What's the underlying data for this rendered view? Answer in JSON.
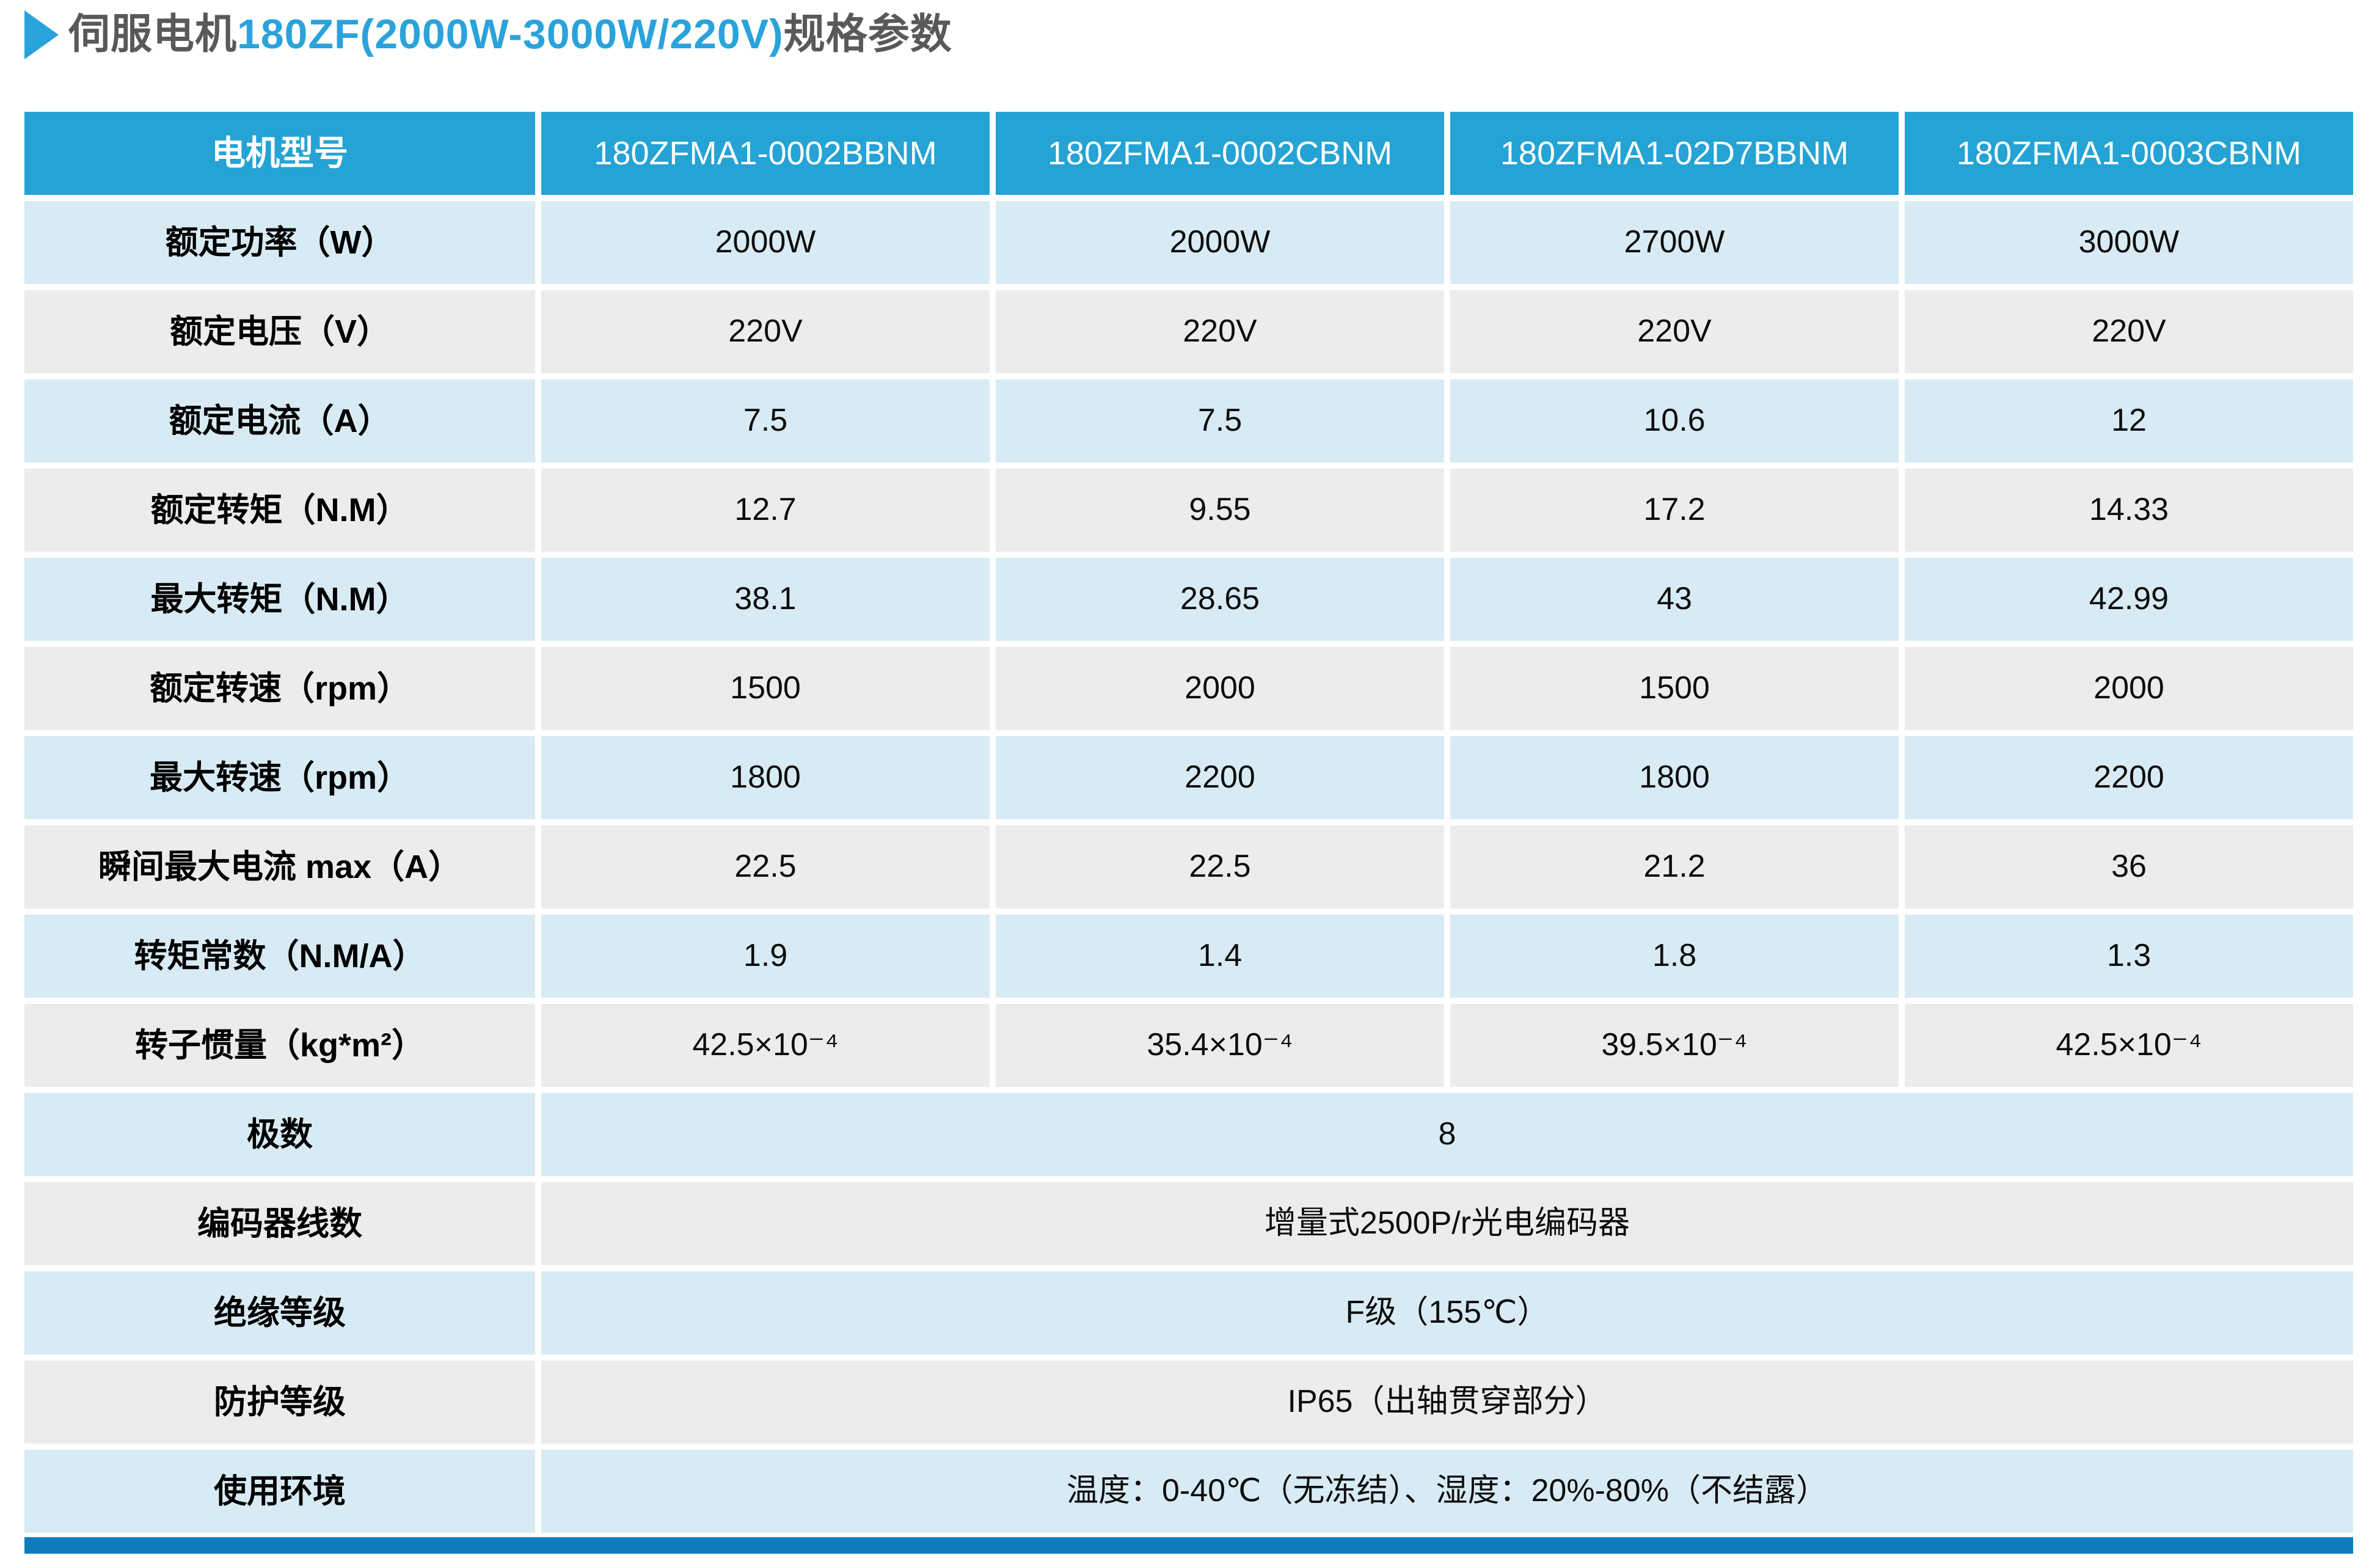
{
  "title": {
    "prefix": "伺服电机",
    "highlight": "180ZF(2000W-3000W/220V)",
    "suffix": "规格参数"
  },
  "colors": {
    "accent_blue": "#24a3d4",
    "title_blue": "#2aa3dc",
    "title_gray": "#58595b",
    "row_blue": "#d8ebf4",
    "row_gray": "#ececec",
    "bottom_bar": "#0e7cbd",
    "text_dark": "#0d0d0d"
  },
  "table": {
    "header": {
      "label": "电机型号",
      "models": [
        "180ZFMA1-0002BBNM",
        "180ZFMA1-0002CBNM",
        "180ZFMA1-02D7BBNM",
        "180ZFMA1-0003CBNM"
      ]
    },
    "rows": [
      {
        "label": "额定功率（W）",
        "values": [
          "2000W",
          "2000W",
          "2700W",
          "3000W"
        ]
      },
      {
        "label": "额定电压（V）",
        "values": [
          "220V",
          "220V",
          "220V",
          "220V"
        ]
      },
      {
        "label": "额定电流（A）",
        "values": [
          "7.5",
          "7.5",
          "10.6",
          "12"
        ]
      },
      {
        "label": "额定转矩（N.M）",
        "values": [
          "12.7",
          "9.55",
          "17.2",
          "14.33"
        ]
      },
      {
        "label": "最大转矩（N.M）",
        "values": [
          "38.1",
          "28.65",
          "43",
          "42.99"
        ]
      },
      {
        "label": "额定转速（rpm）",
        "values": [
          "1500",
          "2000",
          "1500",
          "2000"
        ]
      },
      {
        "label": "最大转速（rpm）",
        "values": [
          "1800",
          "2200",
          "1800",
          "2200"
        ]
      },
      {
        "label": "瞬间最大电流 max（A）",
        "values": [
          "22.5",
          "22.5",
          "21.2",
          "36"
        ]
      },
      {
        "label": "转矩常数（N.M/A）",
        "values": [
          "1.9",
          "1.4",
          "1.8",
          "1.3"
        ]
      },
      {
        "label": "转子惯量（kg*m²）",
        "values": [
          "42.5×10⁻⁴",
          "35.4×10⁻⁴",
          "39.5×10⁻⁴",
          "42.5×10⁻⁴"
        ]
      },
      {
        "label": "极数",
        "span": "8"
      },
      {
        "label": "编码器线数",
        "span": "增量式2500P/r光电编码器"
      },
      {
        "label": "绝缘等级",
        "span": "F级（155℃）"
      },
      {
        "label": "防护等级",
        "span": "IP65（出轴贯穿部分）"
      },
      {
        "label": "使用环境",
        "span": "温度：0-40℃（无冻结）、湿度：20%-80%（不结露）"
      }
    ]
  }
}
